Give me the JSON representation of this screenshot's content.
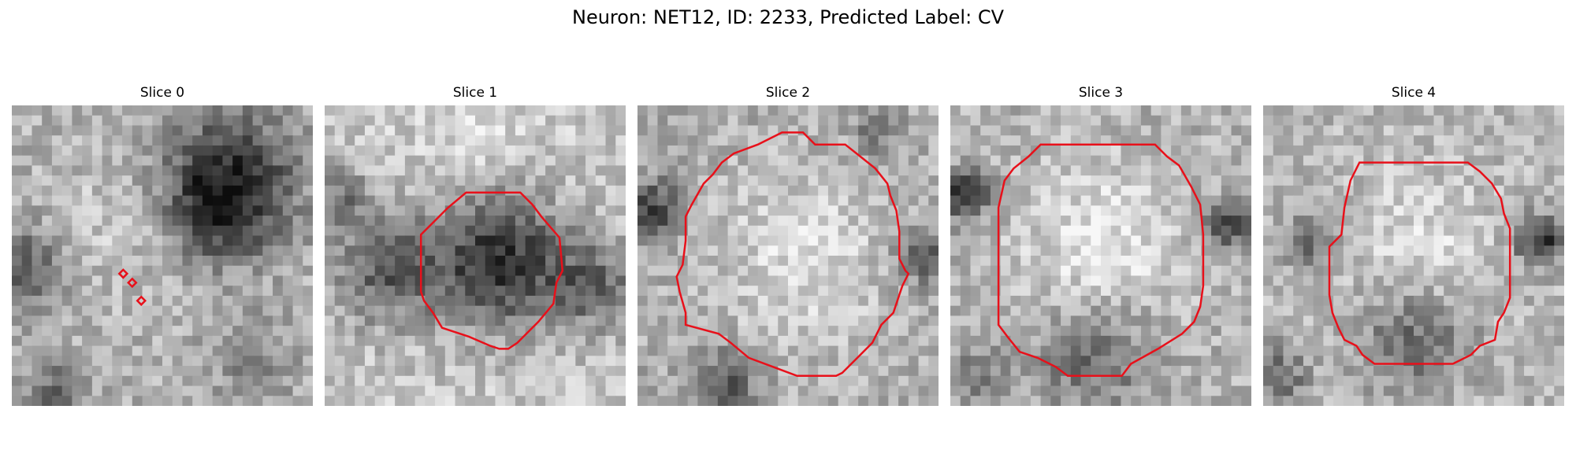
{
  "figure": {
    "title": "Neuron: NET12, ID: 2233, Predicted Label: CV"
  },
  "panels": [
    {
      "title": "Slice 0"
    },
    {
      "title": "Slice 1"
    },
    {
      "title": "Slice 2"
    },
    {
      "title": "Slice 3"
    },
    {
      "title": "Slice 4"
    }
  ],
  "colors": {
    "contour": "#e8101a",
    "background": "#ffffff"
  }
}
